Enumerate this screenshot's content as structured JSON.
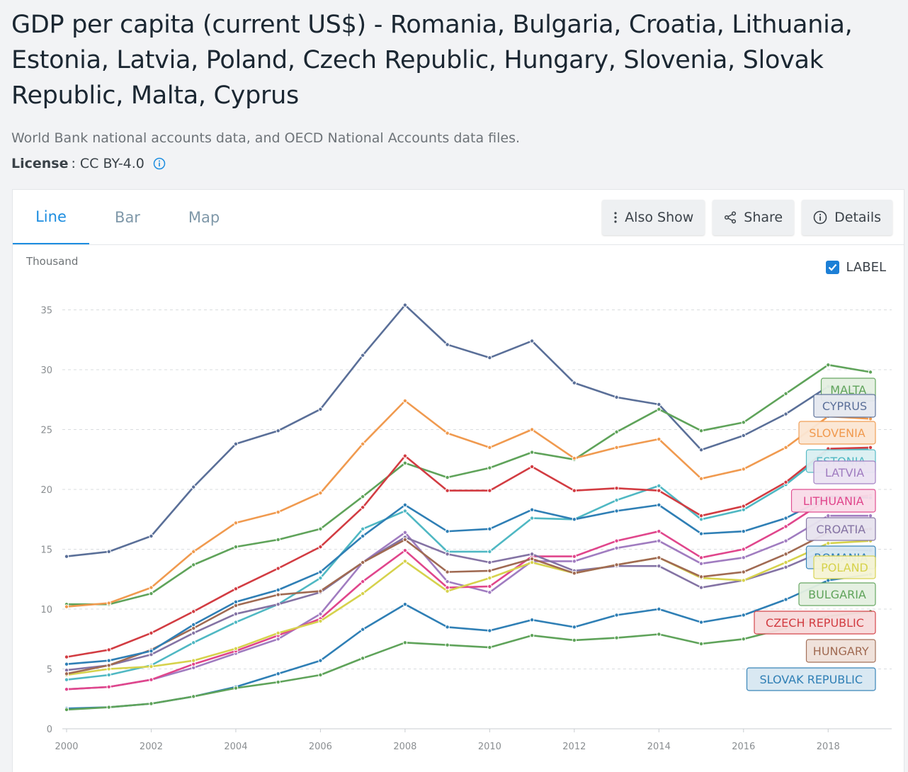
{
  "page": {
    "title": "GDP per capita (current US$) - Romania, Bulgaria, Croatia, Lithuania, Estonia, Latvia, Poland, Czech Republic, Hungary, Slovenia, Slovak Republic, Malta, Cyprus",
    "source": "World Bank national accounts data, and OECD National Accounts data files.",
    "license_key": "License",
    "license_sep": ":",
    "license_value": "CC BY-4.0"
  },
  "tabs": [
    {
      "label": "Line",
      "active": true
    },
    {
      "label": "Bar",
      "active": false
    },
    {
      "label": "Map",
      "active": false
    }
  ],
  "toolbar": {
    "also_show": "Also Show",
    "share": "Share",
    "details": "Details"
  },
  "label_toggle": {
    "label": "LABEL",
    "checked": true
  },
  "icons": {
    "info": "info-circle-icon",
    "also_show": "vertical-dots-icon",
    "share": "share-icon",
    "details": "info-circle-icon",
    "checkbox": "checkmark-icon"
  },
  "colors": {
    "accent": "#1c8de0",
    "grid": "#d9dcdf"
  },
  "chart_data": {
    "type": "line",
    "units": "Thousand",
    "x": [
      2000,
      2001,
      2002,
      2003,
      2004,
      2005,
      2006,
      2007,
      2008,
      2009,
      2010,
      2011,
      2012,
      2013,
      2014,
      2015,
      2016,
      2017,
      2018,
      2019
    ],
    "xticks": [
      2000,
      2002,
      2004,
      2006,
      2008,
      2010,
      2012,
      2014,
      2016,
      2018
    ],
    "yticks": [
      0,
      5,
      10,
      15,
      20,
      25,
      30,
      35
    ],
    "ylim": [
      0,
      36
    ],
    "grid": true,
    "legend": "end-of-line labels",
    "series": [
      {
        "name": "CYPRUS",
        "color": "#5a6f98",
        "values": [
          14.4,
          14.8,
          16.1,
          20.2,
          23.8,
          24.9,
          26.7,
          31.2,
          35.4,
          32.1,
          31.0,
          32.4,
          28.9,
          27.7,
          27.1,
          23.3,
          24.5,
          26.3,
          28.6,
          28.0
        ]
      },
      {
        "name": "MALTA",
        "color": "#5fa35a",
        "values": [
          10.4,
          10.4,
          11.3,
          13.7,
          15.2,
          15.8,
          16.7,
          19.4,
          22.2,
          21.0,
          21.8,
          23.1,
          22.5,
          24.8,
          26.7,
          24.9,
          25.6,
          28.0,
          30.4,
          29.8
        ]
      },
      {
        "name": "SLOVENIA",
        "color": "#f09a4f",
        "values": [
          10.2,
          10.5,
          11.8,
          14.8,
          17.2,
          18.1,
          19.7,
          23.8,
          27.4,
          24.7,
          23.5,
          25.0,
          22.6,
          23.5,
          24.2,
          20.9,
          21.7,
          23.5,
          26.1,
          25.9
        ]
      },
      {
        "name": "ESTONIA",
        "color": "#4fb8c3",
        "values": [
          4.1,
          4.5,
          5.3,
          7.2,
          8.9,
          10.4,
          12.6,
          16.7,
          18.2,
          14.8,
          14.8,
          17.6,
          17.5,
          19.1,
          20.3,
          17.5,
          18.3,
          20.4,
          23.2,
          23.4
        ]
      },
      {
        "name": "LATVIA",
        "color": "#a07cc0",
        "values": [
          3.3,
          3.5,
          4.1,
          5.1,
          6.3,
          7.5,
          9.6,
          13.9,
          16.4,
          12.3,
          11.4,
          14.0,
          14.0,
          15.1,
          15.7,
          13.8,
          14.3,
          15.7,
          17.8,
          17.8
        ]
      },
      {
        "name": "LITHUANIA",
        "color": "#e0468c",
        "values": [
          3.3,
          3.5,
          4.1,
          5.4,
          6.5,
          7.8,
          9.2,
          12.3,
          14.9,
          11.8,
          11.9,
          14.4,
          14.4,
          15.7,
          16.5,
          14.3,
          15.0,
          16.9,
          19.2,
          19.5
        ]
      },
      {
        "name": "CROATIA",
        "color": "#8473a4",
        "values": [
          4.9,
          5.3,
          6.2,
          8.0,
          9.6,
          10.4,
          11.4,
          13.9,
          16.0,
          14.6,
          13.9,
          14.6,
          13.2,
          13.6,
          13.6,
          11.8,
          12.4,
          13.5,
          15.0,
          14.9
        ]
      },
      {
        "name": "ROMANIA",
        "color": "#2f7fb5",
        "values": [
          1.7,
          1.8,
          2.1,
          2.7,
          3.5,
          4.6,
          5.7,
          8.3,
          10.4,
          8.5,
          8.2,
          9.1,
          8.5,
          9.5,
          10.0,
          8.9,
          9.5,
          10.8,
          12.4,
          12.9
        ]
      },
      {
        "name": "POLAND",
        "color": "#d6d24c",
        "values": [
          4.5,
          5.0,
          5.2,
          5.7,
          6.7,
          8.0,
          9.0,
          11.3,
          14.0,
          11.5,
          12.6,
          13.9,
          13.0,
          13.7,
          14.3,
          12.6,
          12.4,
          13.9,
          15.5,
          15.7
        ]
      },
      {
        "name": "BULGARIA",
        "color": "#5fa35a",
        "values": [
          1.6,
          1.8,
          2.1,
          2.7,
          3.4,
          3.9,
          4.5,
          5.9,
          7.2,
          7.0,
          6.8,
          7.8,
          7.4,
          7.6,
          7.9,
          7.1,
          7.5,
          8.4,
          9.4,
          9.8
        ]
      },
      {
        "name": "CZECH REPUBLIC",
        "color": "#d23c42",
        "values": [
          6.0,
          6.6,
          8.0,
          9.8,
          11.7,
          13.4,
          15.2,
          18.5,
          22.8,
          19.9,
          19.9,
          21.9,
          19.9,
          20.1,
          19.9,
          17.8,
          18.6,
          20.6,
          23.4,
          23.5
        ]
      },
      {
        "name": "HUNGARY",
        "color": "#a06a52",
        "values": [
          4.6,
          5.3,
          6.6,
          8.4,
          10.3,
          11.2,
          11.5,
          13.9,
          15.8,
          13.1,
          13.2,
          14.2,
          13.0,
          13.7,
          14.3,
          12.7,
          13.1,
          14.6,
          16.4,
          16.7
        ]
      },
      {
        "name": "SLOVAK REPUBLIC",
        "color": "#2f7fb5",
        "values": [
          5.4,
          5.7,
          6.5,
          8.7,
          10.6,
          11.6,
          13.1,
          16.1,
          18.7,
          16.5,
          16.7,
          18.3,
          17.5,
          18.2,
          18.7,
          16.3,
          16.5,
          17.6,
          19.4,
          19.3
        ]
      }
    ],
    "end_labels": [
      {
        "text": "MALTA",
        "color": "#5fa35a",
        "bg": "#e4f0e1"
      },
      {
        "text": "CYPRUS",
        "color": "#5a6f98",
        "bg": "#e5e8f0"
      },
      {
        "text": "SLOVENIA",
        "color": "#f09a4f",
        "bg": "#fbe6d3"
      },
      {
        "text": "ESTONIA",
        "color": "#4fb8c3",
        "bg": "#dbf0f2"
      },
      {
        "text": "LATVIA",
        "color": "#a07cc0",
        "bg": "#ece3f3"
      },
      {
        "text": "LITHUANIA",
        "color": "#e0468c",
        "bg": "#f9dce8"
      },
      {
        "text": "CROATIA",
        "color": "#8473a4",
        "bg": "#e7e3ef"
      },
      {
        "text": "ROMANIA",
        "color": "#2f7fb5",
        "bg": "#d8e7f2"
      },
      {
        "text": "POLAND",
        "color": "#d6d24c",
        "bg": "#f6f4d4"
      },
      {
        "text": "BULGARIA",
        "color": "#5fa35a",
        "bg": "#e4f0e1"
      },
      {
        "text": "CZECH REPUBLIC",
        "color": "#d23c42",
        "bg": "#f7dbdc"
      },
      {
        "text": "HUNGARY",
        "color": "#a06a52",
        "bg": "#f0e1da"
      },
      {
        "text": "SLOVAK REPUBLIC",
        "color": "#2f7fb5",
        "bg": "#d8e7f2"
      }
    ]
  }
}
